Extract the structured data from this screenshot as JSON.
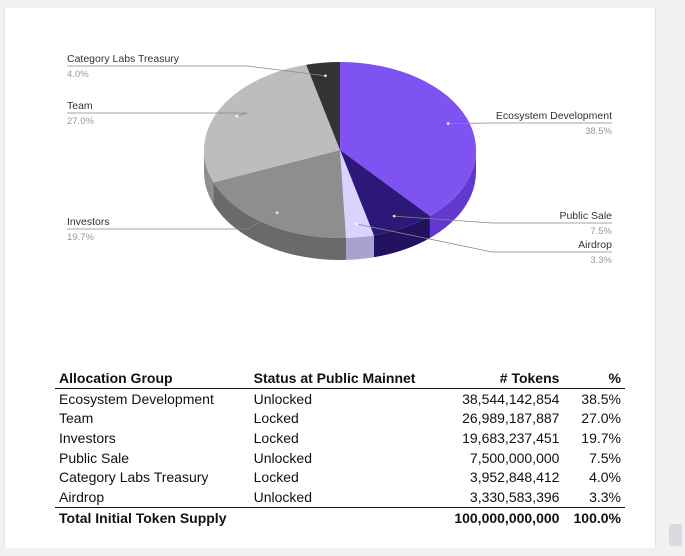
{
  "chart_data": {
    "type": "pie",
    "title": "",
    "slices": [
      {
        "label": "Ecosystem Development",
        "pct_label": "38.5%",
        "value": 38.5,
        "color": "#7f52f2",
        "side_color": "#6238cf"
      },
      {
        "label": "Public Sale",
        "pct_label": "7.5%",
        "value": 7.5,
        "color": "#2c1878",
        "side_color": "#21115e"
      },
      {
        "label": "Airdrop",
        "pct_label": "3.3%",
        "value": 3.3,
        "color": "#d9d3ff",
        "side_color": "#a8a2cf"
      },
      {
        "label": "Investors",
        "pct_label": "19.7%",
        "value": 19.7,
        "color": "#8e8e8e",
        "side_color": "#6a6a6a"
      },
      {
        "label": "Team",
        "pct_label": "27.0%",
        "value": 27.0,
        "color": "#bdbdbd",
        "side_color": "#8f8f8f"
      },
      {
        "label": "Category Labs Treasury",
        "pct_label": "4.0%",
        "value": 4.0,
        "color": "#333333",
        "side_color": "#1f1f1f"
      }
    ],
    "legend": "callout-labels"
  },
  "table": {
    "headers": [
      "Allocation Group",
      "Status at Public Mainnet",
      "# Tokens",
      "%"
    ],
    "rows": [
      [
        "Ecosystem Development",
        "Unlocked",
        "38,544,142,854",
        "38.5%"
      ],
      [
        "Team",
        "Locked",
        "26,989,187,887",
        "27.0%"
      ],
      [
        "Investors",
        "Locked",
        "19,683,237,451",
        "19.7%"
      ],
      [
        "Public Sale",
        "Unlocked",
        "7,500,000,000",
        "7.5%"
      ],
      [
        "Category Labs Treasury",
        "Locked",
        "3,952,848,412",
        "4.0%"
      ],
      [
        "Airdrop",
        "Unlocked",
        "3,330,583,396",
        "3.3%"
      ]
    ],
    "total": [
      "Total Initial Token Supply",
      "",
      "100,000,000,000",
      "100.0%"
    ]
  }
}
